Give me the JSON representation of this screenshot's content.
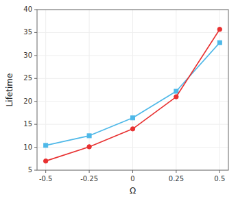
{
  "chart_data": {
    "type": "line",
    "x": [
      -0.5,
      -0.25,
      0,
      0.25,
      0.5
    ],
    "series": [
      {
        "color": "#4eb8e8",
        "marker": "square",
        "values": [
          10.4,
          12.5,
          16.4,
          22.2,
          32.8
        ]
      },
      {
        "color": "#e83030",
        "marker": "circle",
        "values": [
          7.0,
          10.1,
          14.0,
          21.0,
          35.7
        ]
      }
    ],
    "xlabel": "Ω",
    "ylabel": "Lifetime",
    "xlim": [
      -0.55,
      0.55
    ],
    "ylim": [
      5,
      40
    ],
    "xticks": [
      -0.5,
      -0.25,
      0,
      0.25,
      0.5
    ],
    "yticks": [
      5,
      10,
      15,
      20,
      25,
      30,
      35,
      40
    ]
  }
}
